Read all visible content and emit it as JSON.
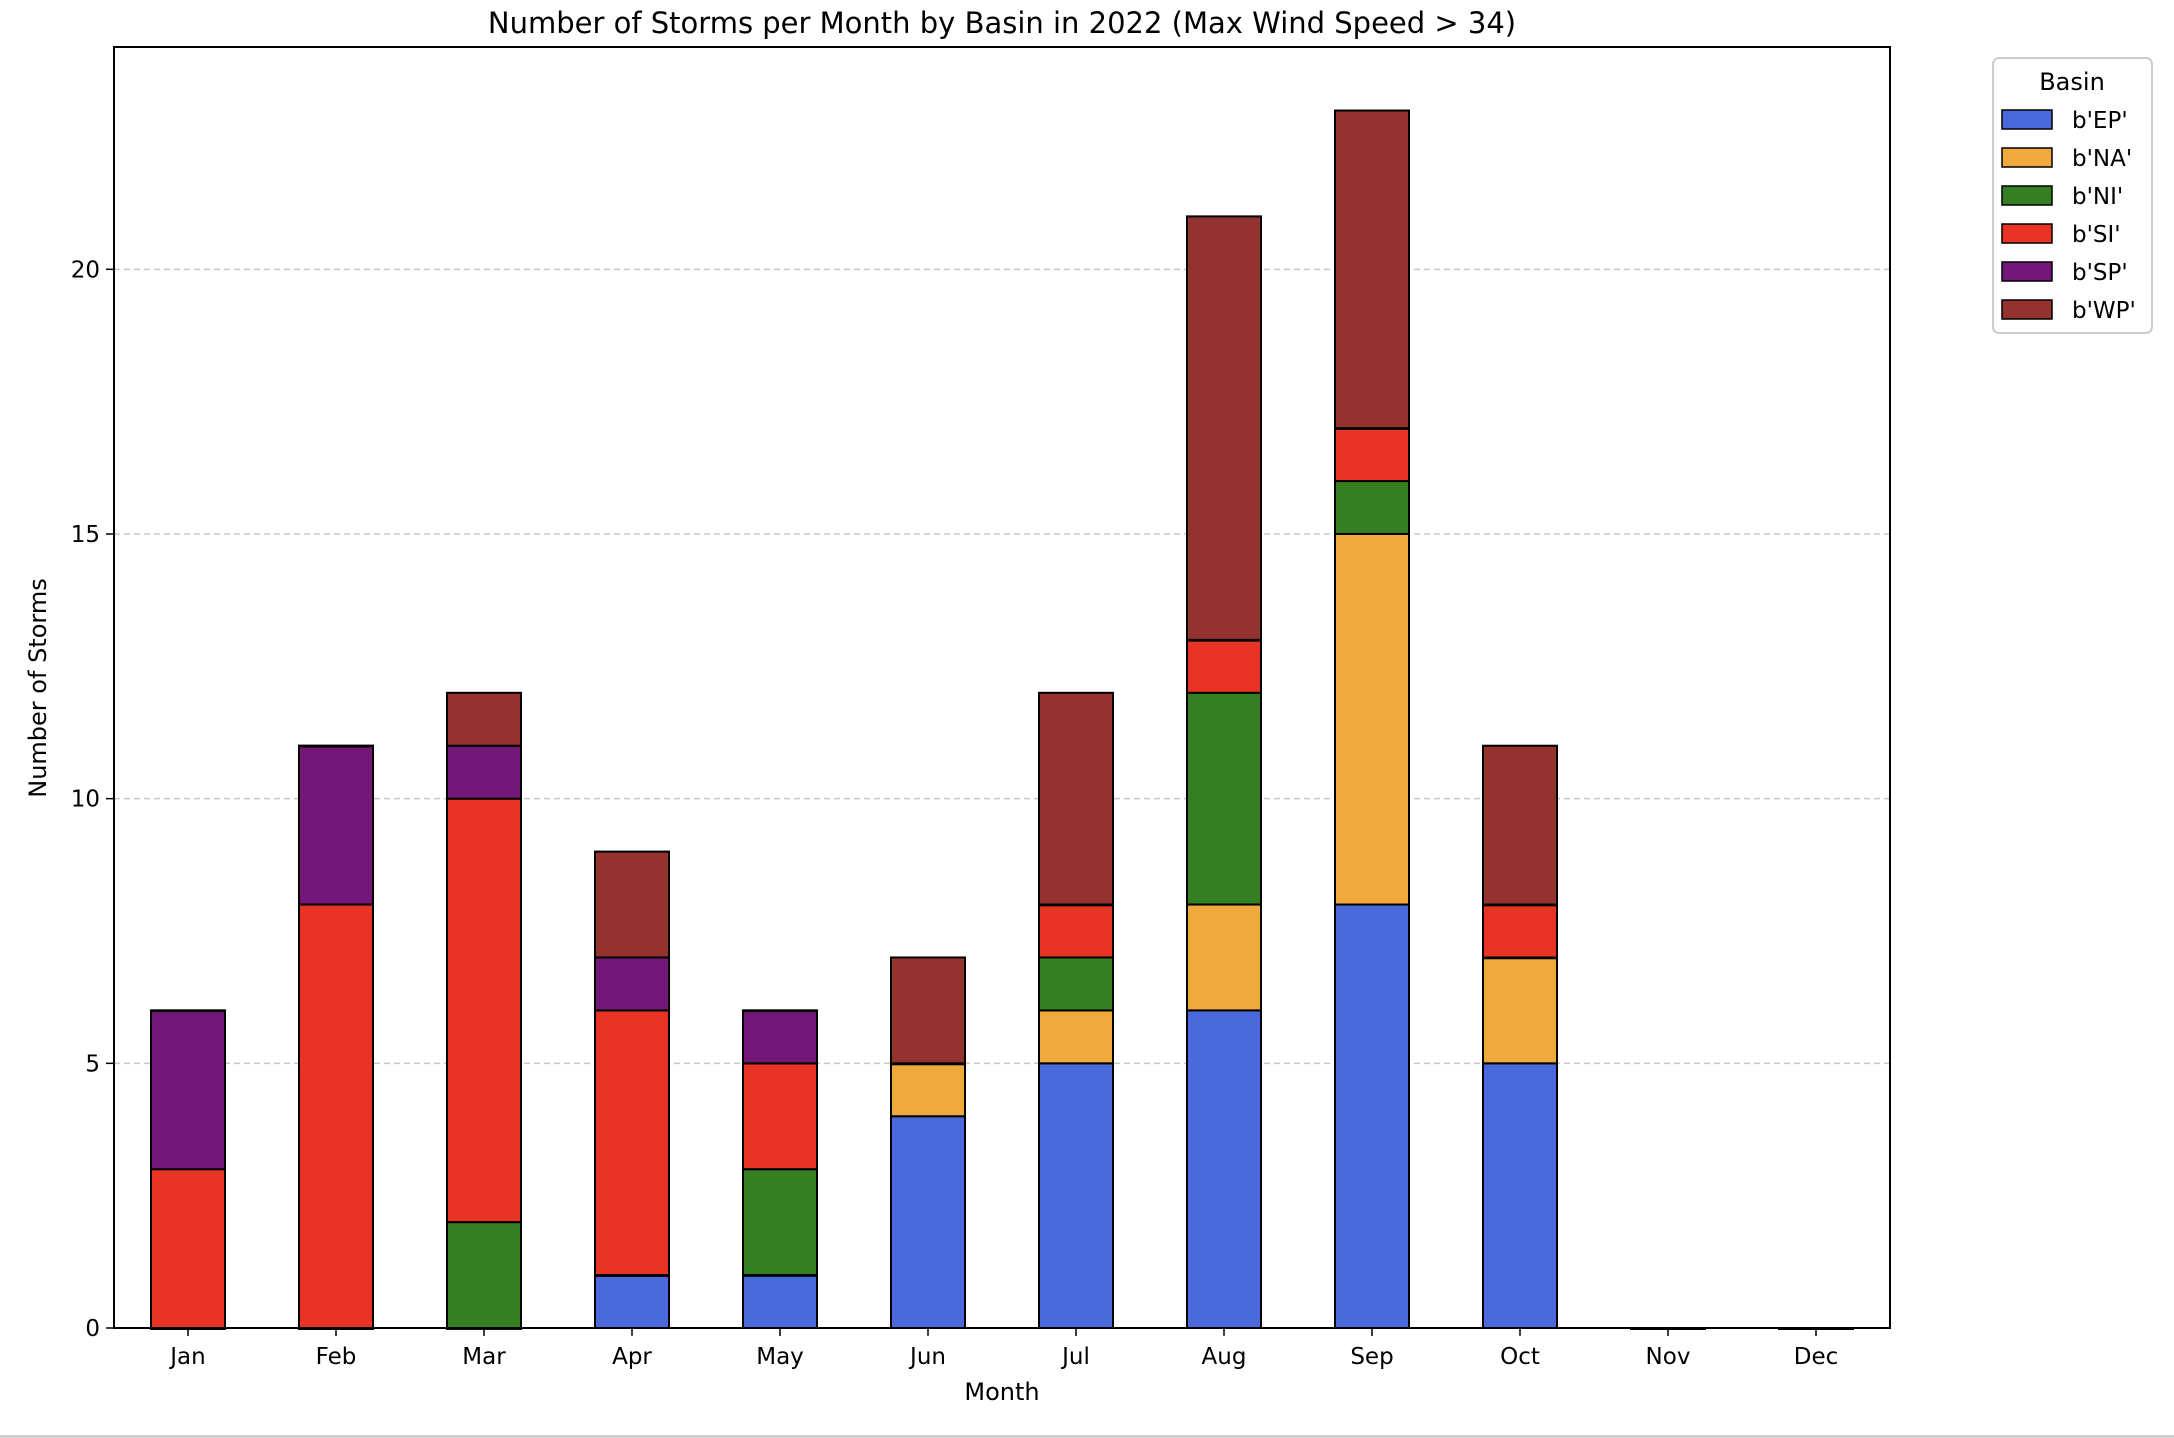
{
  "chart_data": {
    "type": "bar",
    "stacked": true,
    "title": "Number of Storms per Month by Basin in 2022 (Max Wind Speed > 34)",
    "xlabel": "Month",
    "ylabel": "Number of Storms",
    "categories": [
      "Jan",
      "Feb",
      "Mar",
      "Apr",
      "May",
      "Jun",
      "Jul",
      "Aug",
      "Sep",
      "Oct",
      "Nov",
      "Dec"
    ],
    "ylim": [
      0,
      24.2
    ],
    "yticks": [
      0,
      5,
      10,
      15,
      20
    ],
    "grid": "y-dashed",
    "legend": {
      "title": "Basin",
      "placement": "outside-top-right"
    },
    "series": [
      {
        "name": "b'EP'",
        "color": "#4a6adb",
        "values": [
          0,
          0,
          0,
          1,
          1,
          4,
          5,
          6,
          8,
          5,
          0,
          0
        ]
      },
      {
        "name": "b'NA'",
        "color": "#f0a93c",
        "values": [
          0,
          0,
          0,
          0,
          0,
          1,
          1,
          2,
          7,
          2,
          0,
          0
        ]
      },
      {
        "name": "b'NI'",
        "color": "#357e22",
        "values": [
          0,
          0,
          2,
          0,
          2,
          0,
          1,
          4,
          1,
          0,
          0,
          0
        ]
      },
      {
        "name": "b'SI'",
        "color": "#e83424",
        "values": [
          3,
          8,
          8,
          5,
          2,
          0,
          1,
          1,
          1,
          1,
          0,
          0
        ]
      },
      {
        "name": "b'SP'",
        "color": "#731878",
        "values": [
          3,
          3,
          1,
          1,
          1,
          0,
          0,
          0,
          0,
          0,
          0,
          0
        ]
      },
      {
        "name": "b'WP'",
        "color": "#93322f",
        "values": [
          0,
          0,
          1,
          2,
          0,
          2,
          4,
          8,
          6,
          3,
          0,
          0
        ]
      }
    ]
  }
}
